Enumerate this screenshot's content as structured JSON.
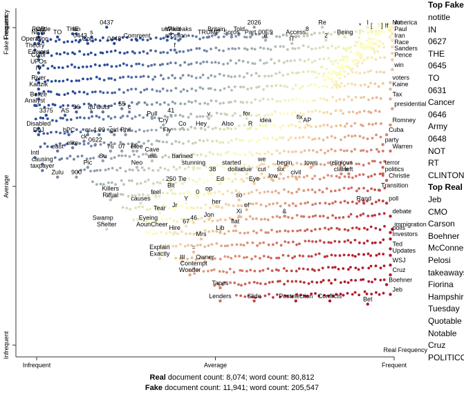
{
  "chart_data": {
    "type": "scatter",
    "xlabel": "Real Frequency",
    "ylabel": "Fake Frequency",
    "x_ticks": [
      "Infrequent",
      "Average",
      "Frequent"
    ],
    "y_ticks": [
      "Infrequent",
      "Average",
      "Frequent"
    ],
    "axis_range": [
      0,
      1
    ],
    "colors": {
      "fake_end": "#b2182b",
      "mid": "#ffffbf",
      "real_end": "#2b4a9b"
    },
    "terms": [
      {
        "term": "notitle",
        "x": 0.07,
        "y": 0.96
      },
      {
        "term": "TO",
        "x": 0.11,
        "y": 0.95
      },
      {
        "term": "THE",
        "x": 0.15,
        "y": 0.96
      },
      {
        "term": "0437",
        "x": 0.24,
        "y": 0.98
      },
      {
        "term": "0443",
        "x": 0.17,
        "y": 0.94
      },
      {
        "term": "Comment",
        "x": 0.32,
        "y": 0.94
      },
      {
        "term": "Wikileaks",
        "x": 0.43,
        "y": 0.96
      },
      {
        "term": "Onion",
        "x": 0.43,
        "y": 0.94
      },
      {
        "term": "Cop",
        "x": 0.19,
        "y": 0.93
      },
      {
        "term": "0448",
        "x": 0.26,
        "y": 0.93
      },
      {
        "term": "IN",
        "x": 0.06,
        "y": 0.93
      },
      {
        "term": "TRUMP",
        "x": 0.51,
        "y": 0.95
      },
      {
        "term": "Soros",
        "x": 0.57,
        "y": 0.95
      },
      {
        "term": "2026",
        "x": 0.63,
        "y": 0.98
      },
      {
        "term": "Part",
        "x": 0.62,
        "y": 0.95
      },
      {
        "term": "00E9",
        "x": 0.66,
        "y": 0.95
      },
      {
        "term": "Access",
        "x": 0.74,
        "y": 0.95
      },
      {
        "term": "Re",
        "x": 0.81,
        "y": 0.98
      },
      {
        "term": "2",
        "x": 0.82,
        "y": 0.94
      },
      {
        "term": "Being",
        "x": 0.87,
        "y": 0.95
      },
      {
        "term": "*",
        "x": 0.91,
        "y": 0.97
      },
      {
        "term": "I",
        "x": 0.93,
        "y": 0.98
      },
      {
        "term": "[",
        "x": 0.94,
        "y": 0.97
      },
      {
        "term": "]",
        "x": 0.96,
        "y": 0.97
      },
      {
        "term": "If",
        "x": 0.97,
        "y": 0.97
      },
      {
        "term": "Not",
        "x": 0.99,
        "y": 0.98
      },
      {
        "term": "America",
        "x": 1.03,
        "y": 0.98
      },
      {
        "term": "Paul",
        "x": 1.03,
        "y": 0.96
      },
      {
        "term": "Iran",
        "x": 1.03,
        "y": 0.94
      },
      {
        "term": "Race",
        "x": 1.03,
        "y": 0.92
      },
      {
        "term": "Sanders",
        "x": 1.04,
        "y": 0.9
      },
      {
        "term": "Pence",
        "x": 1.03,
        "y": 0.88
      },
      {
        "term": "win",
        "x": 1.02,
        "y": 0.85
      },
      {
        "term": "voters",
        "x": 0.99,
        "y": 0.81
      },
      {
        "term": "Kaine",
        "x": 0.99,
        "y": 0.79
      },
      {
        "term": "Tax",
        "x": 0.99,
        "y": 0.76
      },
      {
        "term": "presidential",
        "x": 1.0,
        "y": 0.73
      },
      {
        "term": "Romney",
        "x": 0.99,
        "y": 0.68
      },
      {
        "term": "Cuba",
        "x": 0.98,
        "y": 0.65
      },
      {
        "term": "party",
        "x": 0.97,
        "y": 0.62
      },
      {
        "term": "Warren",
        "x": 0.99,
        "y": 0.6
      },
      {
        "term": "terror",
        "x": 0.97,
        "y": 0.55
      },
      {
        "term": "politics",
        "x": 0.97,
        "y": 0.53
      },
      {
        "term": "Christie",
        "x": 0.98,
        "y": 0.51
      },
      {
        "term": "left",
        "x": 0.88,
        "y": 0.53
      },
      {
        "term": "Transition",
        "x": 0.96,
        "y": 0.48
      },
      {
        "term": "poll",
        "x": 0.98,
        "y": 0.44
      },
      {
        "term": "Rand",
        "x": 0.92,
        "y": 0.44
      },
      {
        "term": "debate",
        "x": 0.99,
        "y": 0.4
      },
      {
        "term": "immigration",
        "x": 1.0,
        "y": 0.36
      },
      {
        "term": "polls",
        "x": 0.99,
        "y": 0.35
      },
      {
        "term": "Investors",
        "x": 0.99,
        "y": 0.33
      },
      {
        "term": "Ted",
        "x": 0.99,
        "y": 0.3
      },
      {
        "term": "Updates",
        "x": 0.99,
        "y": 0.28
      },
      {
        "term": "WSJ",
        "x": 0.99,
        "y": 0.25
      },
      {
        "term": "Cruz",
        "x": 0.99,
        "y": 0.22
      },
      {
        "term": "Boehner",
        "x": 0.98,
        "y": 0.19
      },
      {
        "term": "Jeb",
        "x": 0.99,
        "y": 0.16
      },
      {
        "term": "Bet",
        "x": 0.93,
        "y": 0.13
      },
      {
        "term": "Conflicts",
        "x": 0.83,
        "y": 0.14
      },
      {
        "term": "Postelection",
        "x": 0.74,
        "y": 0.14
      },
      {
        "term": "Slide",
        "x": 0.63,
        "y": 0.14
      },
      {
        "term": "Lenders",
        "x": 0.54,
        "y": 0.14
      },
      {
        "term": "Tapes",
        "x": 0.54,
        "y": 0.18
      },
      {
        "term": "Wonder",
        "x": 0.46,
        "y": 0.22
      },
      {
        "term": "Contempt",
        "x": 0.47,
        "y": 0.24
      },
      {
        "term": "III",
        "x": 0.44,
        "y": 0.26
      },
      {
        "term": "Owner",
        "x": 0.5,
        "y": 0.26
      },
      {
        "term": "Explain",
        "x": 0.38,
        "y": 0.29
      },
      {
        "term": "Exactly",
        "x": 0.38,
        "y": 0.27
      },
      {
        "term": "=",
        "x": 0.47,
        "y": 0.29
      },
      {
        "term": "Mrs",
        "x": 0.49,
        "y": 0.33
      },
      {
        "term": "Lib",
        "x": 0.54,
        "y": 0.35
      },
      {
        "term": "flat",
        "x": 0.58,
        "y": 0.37
      },
      {
        "term": "Hire",
        "x": 0.42,
        "y": 0.35
      },
      {
        "term": "67",
        "x": 0.45,
        "y": 0.37
      },
      {
        "term": "46",
        "x": 0.47,
        "y": 0.38
      },
      {
        "term": "Jon",
        "x": 0.51,
        "y": 0.39
      },
      {
        "term": "Xi",
        "x": 0.59,
        "y": 0.4
      },
      {
        "term": "&",
        "x": 0.71,
        "y": 0.4
      },
      {
        "term": "of",
        "x": 0.61,
        "y": 0.42
      },
      {
        "term": "her",
        "x": 0.53,
        "y": 0.43
      },
      {
        "term": "so",
        "x": 0.59,
        "y": 0.45
      },
      {
        "term": "Eyeing",
        "x": 0.35,
        "y": 0.38
      },
      {
        "term": "AounCheer",
        "x": 0.36,
        "y": 0.36
      },
      {
        "term": "Swamp",
        "x": 0.23,
        "y": 0.38
      },
      {
        "term": "Shelter",
        "x": 0.24,
        "y": 0.36
      },
      {
        "term": "Tear",
        "x": 0.38,
        "y": 0.41
      },
      {
        "term": "Jr",
        "x": 0.42,
        "y": 0.42
      },
      {
        "term": "Y",
        "x": 0.45,
        "y": 0.44
      },
      {
        "term": "0",
        "x": 0.48,
        "y": 0.46
      },
      {
        "term": "op",
        "x": 0.51,
        "y": 0.47
      },
      {
        "term": "causes",
        "x": 0.33,
        "y": 0.44
      },
      {
        "term": "feel",
        "x": 0.37,
        "y": 0.46
      },
      {
        "term": "Killers",
        "x": 0.25,
        "y": 0.47
      },
      {
        "term": "Ritual",
        "x": 0.25,
        "y": 0.45
      },
      {
        "term": "Bit",
        "x": 0.41,
        "y": 0.48
      },
      {
        "term": "250",
        "x": 0.41,
        "y": 0.5
      },
      {
        "term": "Tie",
        "x": 0.44,
        "y": 0.5
      },
      {
        "term": "Ed",
        "x": 0.54,
        "y": 0.5
      },
      {
        "term": "Eye",
        "x": 0.63,
        "y": 0.5
      },
      {
        "term": "low",
        "x": 0.68,
        "y": 0.51
      },
      {
        "term": "38",
        "x": 0.52,
        "y": 0.53
      },
      {
        "term": "dollar",
        "x": 0.58,
        "y": 0.53
      },
      {
        "term": "due",
        "x": 0.61,
        "y": 0.53
      },
      {
        "term": "cut",
        "x": 0.65,
        "y": 0.53
      },
      {
        "term": "six",
        "x": 0.7,
        "y": 0.53
      },
      {
        "term": "civil",
        "x": 0.74,
        "y": 0.52
      },
      {
        "term": "stunning",
        "x": 0.47,
        "y": 0.55
      },
      {
        "term": "started",
        "x": 0.57,
        "y": 0.55
      },
      {
        "term": "we",
        "x": 0.65,
        "y": 0.56
      },
      {
        "term": "begin",
        "x": 0.71,
        "y": 0.55
      },
      {
        "term": "town",
        "x": 0.78,
        "y": 0.55
      },
      {
        "term": "religious",
        "x": 0.86,
        "y": 0.55
      },
      {
        "term": "claim",
        "x": 0.86,
        "y": 0.53
      },
      {
        "term": "banned",
        "x": 0.44,
        "y": 0.57
      },
      {
        "term": "Neo",
        "x": 0.32,
        "y": 0.55
      },
      {
        "term": "will",
        "x": 0.36,
        "y": 0.57
      },
      {
        "term": "Cave",
        "x": 0.36,
        "y": 0.59
      },
      {
        "term": "Flee",
        "x": 0.32,
        "y": 0.6
      },
      {
        "term": "76",
        "x": 0.25,
        "y": 0.6
      },
      {
        "term": "07",
        "x": 0.28,
        "y": 0.6
      },
      {
        "term": "et",
        "x": 0.31,
        "y": 0.6
      },
      {
        "term": "Su",
        "x": 0.23,
        "y": 0.57
      },
      {
        "term": "Pic",
        "x": 0.19,
        "y": 0.55
      },
      {
        "term": "Zulu",
        "x": 0.11,
        "y": 0.52
      },
      {
        "term": "900",
        "x": 0.16,
        "y": 0.52
      },
      {
        "term": "Intl",
        "x": 0.05,
        "y": 0.58
      },
      {
        "term": "causing",
        "x": 0.07,
        "y": 0.56
      },
      {
        "term": "taxpayer",
        "x": 0.07,
        "y": 0.54
      },
      {
        "term": "east",
        "x": 0.11,
        "y": 0.6
      },
      {
        "term": "elite",
        "x": 0.15,
        "y": 0.61
      },
      {
        "term": "ck",
        "x": 0.18,
        "y": 0.63
      },
      {
        "term": "0622",
        "x": 0.21,
        "y": 0.62
      },
      {
        "term": "er",
        "x": 0.19,
        "y": 0.65
      },
      {
        "term": "4.99",
        "x": 0.22,
        "y": 0.65
      },
      {
        "term": "~",
        "x": 0.25,
        "y": 0.66
      },
      {
        "term": "girl",
        "x": 0.26,
        "y": 0.65
      },
      {
        "term": "Phil",
        "x": 0.29,
        "y": 0.65
      },
      {
        "term": "bPC",
        "x": 0.14,
        "y": 0.65
      },
      {
        "term": "DoJ",
        "x": 0.06,
        "y": 0.65
      },
      {
        "term": "Disabled",
        "x": 0.06,
        "y": 0.67
      },
      {
        "term": "Fly",
        "x": 0.4,
        "y": 0.65
      },
      {
        "term": "Cry",
        "x": 0.39,
        "y": 0.68
      },
      {
        "term": "Co",
        "x": 0.44,
        "y": 0.67
      },
      {
        "term": "Hey",
        "x": 0.49,
        "y": 0.67
      },
      {
        "term": "v",
        "x": 0.51,
        "y": 0.7
      },
      {
        "term": "Also",
        "x": 0.56,
        "y": 0.67
      },
      {
        "term": "R",
        "x": 0.62,
        "y": 0.67
      },
      {
        "term": "for",
        "x": 0.61,
        "y": 0.7
      },
      {
        "term": "idea",
        "x": 0.66,
        "y": 0.68
      },
      {
        "term": "fix",
        "x": 0.75,
        "y": 0.69
      },
      {
        "term": "AP",
        "x": 0.77,
        "y": 0.68
      },
      {
        "term": "Pull",
        "x": 0.36,
        "y": 0.7
      },
      {
        "term": "41",
        "x": 0.41,
        "y": 0.71
      },
      {
        "term": "c",
        "x": 0.3,
        "y": 0.72
      },
      {
        "term": "3375",
        "x": 0.08,
        "y": 0.71
      },
      {
        "term": "AS",
        "x": 0.13,
        "y": 0.71
      },
      {
        "term": "36",
        "x": 0.16,
        "y": 0.72
      },
      {
        "term": "qu",
        "x": 0.2,
        "y": 0.72
      },
      {
        "term": "Outs",
        "x": 0.23,
        "y": 0.72
      },
      {
        "term": "55",
        "x": 0.28,
        "y": 0.73
      },
      {
        "term": "Analyst",
        "x": 0.05,
        "y": 0.74
      },
      {
        "term": "Belize",
        "x": 0.06,
        "y": 0.76
      },
      {
        "term": "Kadzik",
        "x": 0.06,
        "y": 0.79
      },
      {
        "term": "River",
        "x": 0.06,
        "y": 0.81
      },
      {
        "term": "IV",
        "x": 0.06,
        "y": 0.84
      },
      {
        "term": "UFOs",
        "x": 0.06,
        "y": 0.86
      },
      {
        "term": "Color",
        "x": 0.06,
        "y": 0.88
      },
      {
        "term": "Edward",
        "x": 0.06,
        "y": 0.89
      },
      {
        "term": "Theory",
        "x": 0.05,
        "y": 0.91
      },
      {
        "term": "Operation",
        "x": 0.05,
        "y": 0.93
      },
      {
        "term": "NEW",
        "x": 0.06,
        "y": 0.95
      },
      {
        "term": "FOR",
        "x": 0.06,
        "y": 0.96
      },
      {
        "term": "lan",
        "x": 0.16,
        "y": 0.96
      },
      {
        "term": "s",
        "x": 0.2,
        "y": 0.95
      },
      {
        "term": "unPaid",
        "x": 0.41,
        "y": 0.96
      },
      {
        "term": "al",
        "x": 0.4,
        "y": 0.94
      },
      {
        "term": "f",
        "x": 0.42,
        "y": 0.91
      },
      {
        "term": "Britain",
        "x": 0.53,
        "y": 0.96
      },
      {
        "term": "Told",
        "x": 0.59,
        "y": 0.96
      },
      {
        "term": "e",
        "x": 0.66,
        "y": 0.94
      },
      {
        "term": "IT",
        "x": 0.73,
        "y": 0.93
      },
      {
        "term": "8",
        "x": 0.77,
        "y": 0.96
      }
    ],
    "bands": [
      {
        "y": 0.95,
        "x0": 0.06,
        "x1": 0.98
      },
      {
        "y": 0.91,
        "x0": 0.06,
        "x1": 0.98
      },
      {
        "y": 0.87,
        "x0": 0.06,
        "x1": 0.98
      },
      {
        "y": 0.83,
        "x0": 0.05,
        "x1": 0.98
      },
      {
        "y": 0.79,
        "x0": 0.05,
        "x1": 0.98
      },
      {
        "y": 0.75,
        "x0": 0.05,
        "x1": 0.97
      },
      {
        "y": 0.71,
        "x0": 0.05,
        "x1": 0.97
      },
      {
        "y": 0.67,
        "x0": 0.05,
        "x1": 0.97
      },
      {
        "y": 0.63,
        "x0": 0.06,
        "x1": 0.97
      },
      {
        "y": 0.59,
        "x0": 0.1,
        "x1": 0.98
      },
      {
        "y": 0.55,
        "x0": 0.16,
        "x1": 0.98
      },
      {
        "y": 0.51,
        "x0": 0.2,
        "x1": 0.98
      },
      {
        "y": 0.47,
        "x0": 0.24,
        "x1": 0.98
      },
      {
        "y": 0.43,
        "x0": 0.28,
        "x1": 0.98
      },
      {
        "y": 0.39,
        "x0": 0.31,
        "x1": 0.98
      },
      {
        "y": 0.35,
        "x0": 0.34,
        "x1": 0.98
      },
      {
        "y": 0.31,
        "x0": 0.38,
        "x1": 0.98
      },
      {
        "y": 0.27,
        "x0": 0.42,
        "x1": 0.98
      },
      {
        "y": 0.23,
        "x0": 0.46,
        "x1": 0.98
      },
      {
        "y": 0.19,
        "x0": 0.52,
        "x1": 0.98
      },
      {
        "y": 0.15,
        "x0": 0.58,
        "x1": 0.98
      }
    ]
  },
  "top_fake": {
    "title": "Top Fake",
    "items": [
      "notitle",
      "IN",
      "0627",
      "THE",
      "0645",
      "TO",
      "0631",
      "Cancer",
      "0646",
      "Army",
      "0648",
      "NOT",
      "RT",
      "CLINTON"
    ]
  },
  "top_real": {
    "title": "Top Real",
    "items": [
      "Jeb",
      "CMO",
      "Carson",
      "Boehner",
      "McConnell",
      "Pelosi",
      "takeaways",
      "Fiorina",
      "Hampshire",
      "Tuesday",
      "Quotable",
      "Notable",
      "Cruz",
      "POLITICO"
    ]
  },
  "footer": {
    "real_label": "Real",
    "real_counts": "document count: 8,074; word count: 80,812",
    "fake_label": "Fake",
    "fake_counts": "document count: 11,941; word count: 205,547"
  }
}
